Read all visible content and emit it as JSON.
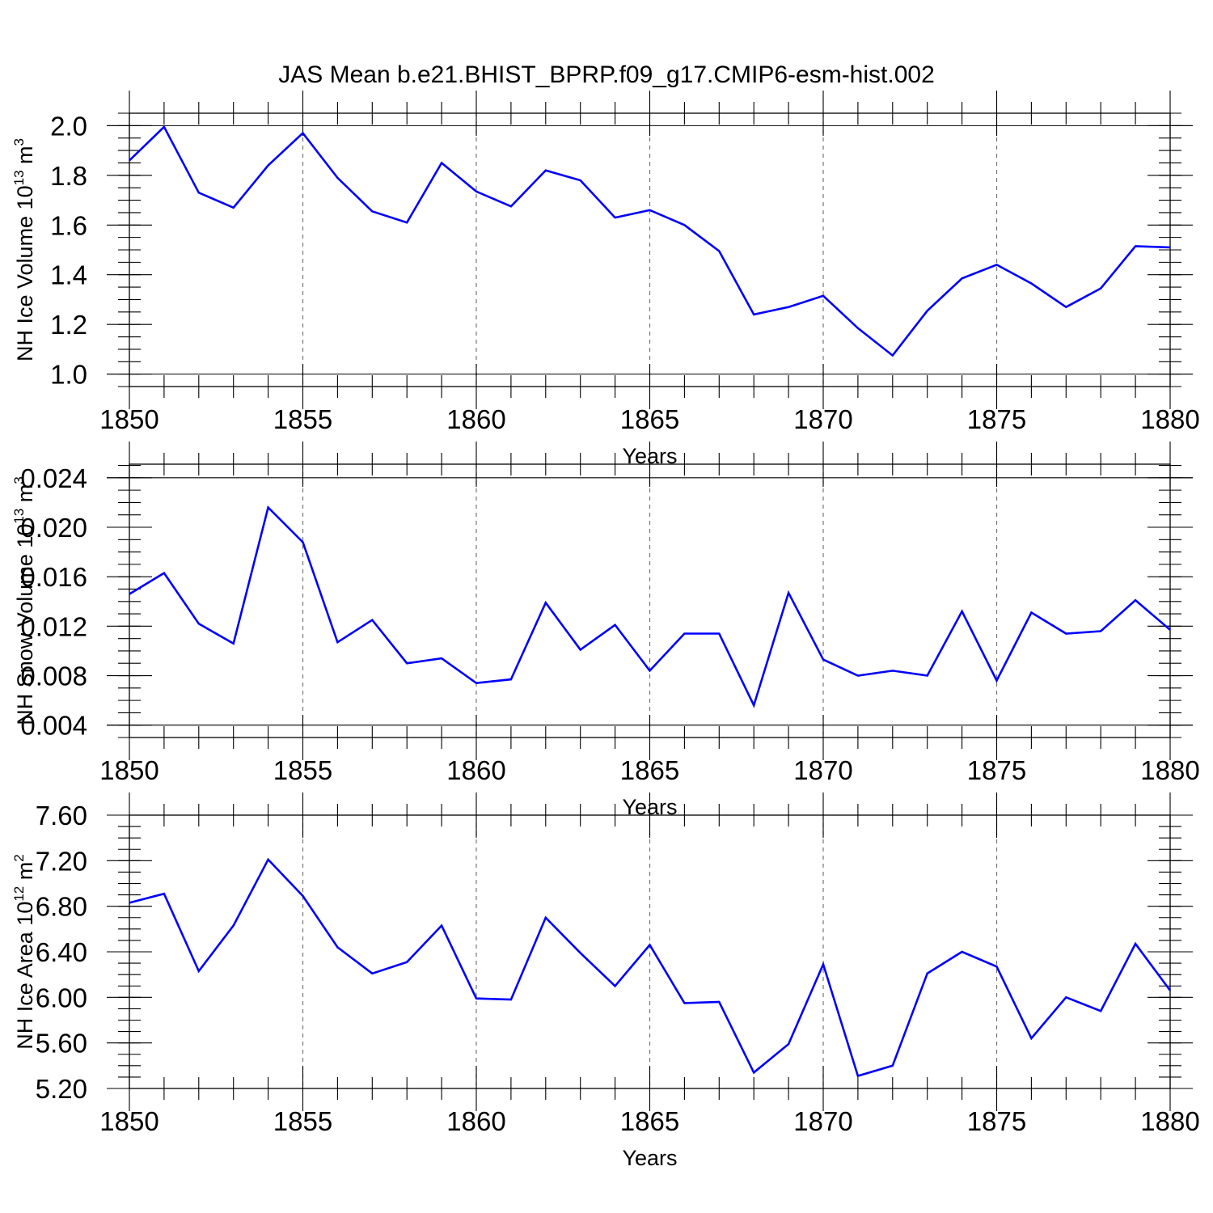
{
  "title": "JAS Mean b.e21.BHIST_BPRP.f09_g17.CMIP6-esm-hist.002",
  "chart_data": [
    {
      "type": "line",
      "ylabel": "NH Ice Volume 10",
      "ylabel_sup": "13",
      "ylabel_unit": "m",
      "ylabel_unit_sup": "3",
      "xlabel": "Years",
      "xlim": [
        1850,
        1880
      ],
      "ylim": [
        0.95,
        2.05
      ],
      "x": [
        1850,
        1851,
        1852,
        1853,
        1854,
        1855,
        1856,
        1857,
        1858,
        1859,
        1860,
        1861,
        1862,
        1863,
        1864,
        1865,
        1866,
        1867,
        1868,
        1869,
        1870,
        1871,
        1872,
        1873,
        1874,
        1875,
        1876,
        1877,
        1878,
        1879,
        1880
      ],
      "series": [
        {
          "name": "NH Ice Volume",
          "color": "#0000ff",
          "values": [
            1.86,
            1.995,
            1.73,
            1.67,
            1.84,
            1.97,
            1.79,
            1.655,
            1.61,
            1.85,
            1.735,
            1.675,
            1.82,
            1.78,
            1.63,
            1.66,
            1.6,
            1.495,
            1.24,
            1.27,
            1.315,
            1.185,
            1.075,
            1.255,
            1.385,
            1.44,
            1.365,
            1.27,
            1.345,
            1.515,
            1.51
          ]
        }
      ],
      "yticks": [
        1.0,
        1.2,
        1.4,
        1.6,
        1.8,
        2.0
      ],
      "ytick_labels": [
        "1.0",
        "1.2",
        "1.4",
        "1.6",
        "1.8",
        "2.0"
      ],
      "xticks": [
        1850,
        1855,
        1860,
        1865,
        1870,
        1875,
        1880
      ],
      "xtick_labels": [
        "1850",
        "1855",
        "1860",
        "1865",
        "1870",
        "1875",
        "1880"
      ],
      "grid": "dashed vertical at major x ticks",
      "legend": "none"
    },
    {
      "type": "line",
      "ylabel": "NH Snow Volume 10",
      "ylabel_sup": "13",
      "ylabel_unit": "m",
      "ylabel_unit_sup": "3",
      "xlabel": "Years",
      "xlim": [
        1850,
        1880
      ],
      "ylim": [
        0.003,
        0.0251
      ],
      "x": [
        1850,
        1851,
        1852,
        1853,
        1854,
        1855,
        1856,
        1857,
        1858,
        1859,
        1860,
        1861,
        1862,
        1863,
        1864,
        1865,
        1866,
        1867,
        1868,
        1869,
        1870,
        1871,
        1872,
        1873,
        1874,
        1875,
        1876,
        1877,
        1878,
        1879,
        1880
      ],
      "series": [
        {
          "name": "NH Snow Volume",
          "color": "#0000ff",
          "values": [
            0.0146,
            0.0163,
            0.0122,
            0.0106,
            0.0216,
            0.0188,
            0.0107,
            0.0125,
            0.009,
            0.0094,
            0.0074,
            0.0077,
            0.0139,
            0.0101,
            0.0121,
            0.0084,
            0.0114,
            0.0114,
            0.0056,
            0.0147,
            0.0093,
            0.008,
            0.0084,
            0.008,
            0.0132,
            0.0076,
            0.0131,
            0.0114,
            0.0116,
            0.0141,
            0.0117
          ]
        }
      ],
      "yticks": [
        0.004,
        0.008,
        0.012,
        0.016,
        0.02,
        0.024
      ],
      "ytick_labels": [
        "0.004",
        "0.008",
        "0.012",
        "0.016",
        "0.020",
        "0.024"
      ],
      "xticks": [
        1850,
        1855,
        1860,
        1865,
        1870,
        1875,
        1880
      ],
      "xtick_labels": [
        "1850",
        "1855",
        "1860",
        "1865",
        "1870",
        "1875",
        "1880"
      ],
      "grid": "dashed vertical at major x ticks",
      "legend": "none"
    },
    {
      "type": "line",
      "ylabel": "NH Ice Area 10",
      "ylabel_sup": "12",
      "ylabel_unit": "m",
      "ylabel_unit_sup": "2",
      "xlabel": "Years",
      "xlim": [
        1850,
        1880
      ],
      "ylim": [
        5.2,
        7.6
      ],
      "x": [
        1850,
        1851,
        1852,
        1853,
        1854,
        1855,
        1856,
        1857,
        1858,
        1859,
        1860,
        1861,
        1862,
        1863,
        1864,
        1865,
        1866,
        1867,
        1868,
        1869,
        1870,
        1871,
        1872,
        1873,
        1874,
        1875,
        1876,
        1877,
        1878,
        1879,
        1880
      ],
      "series": [
        {
          "name": "NH Ice Area",
          "color": "#0000ff",
          "values": [
            6.83,
            6.91,
            6.23,
            6.63,
            7.21,
            6.89,
            6.44,
            6.21,
            6.31,
            6.63,
            5.99,
            5.98,
            6.7,
            6.39,
            6.1,
            6.46,
            5.95,
            5.96,
            5.34,
            5.59,
            6.29,
            5.31,
            5.4,
            6.21,
            6.4,
            6.27,
            5.64,
            6.0,
            5.88,
            6.47,
            6.06
          ]
        }
      ],
      "yticks": [
        5.2,
        5.6,
        6.0,
        6.4,
        6.8,
        7.2,
        7.6
      ],
      "ytick_labels": [
        "5.20",
        "5.60",
        "6.00",
        "6.40",
        "6.80",
        "7.20",
        "7.60"
      ],
      "xticks": [
        1850,
        1855,
        1860,
        1865,
        1870,
        1875,
        1880
      ],
      "xtick_labels": [
        "1850",
        "1855",
        "1860",
        "1865",
        "1870",
        "1875",
        "1880"
      ],
      "grid": "dashed vertical at major x ticks",
      "legend": "none"
    }
  ]
}
